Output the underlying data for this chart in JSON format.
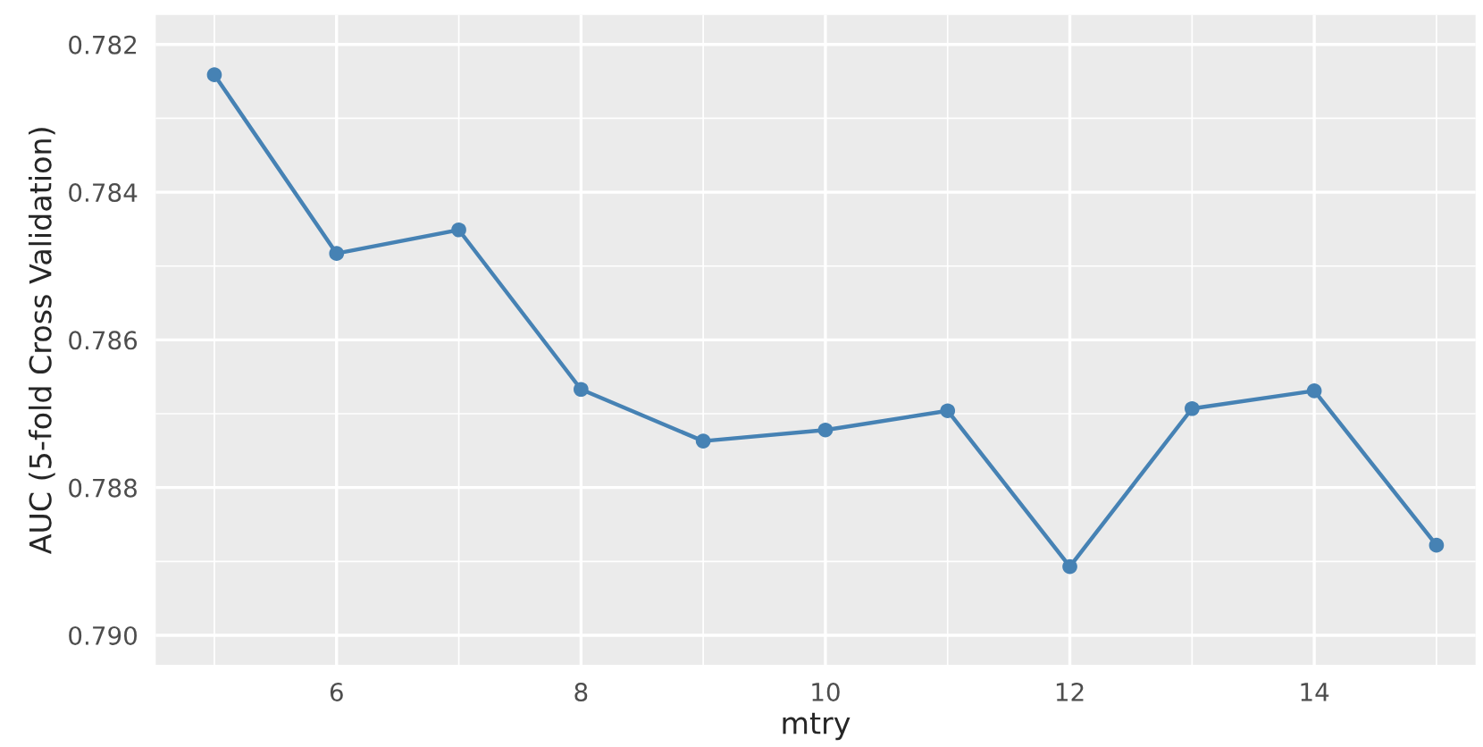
{
  "chart_data": {
    "type": "line",
    "xlabel": "mtry",
    "ylabel": "AUC (5-fold Cross Validation)",
    "x": [
      5,
      6,
      7,
      8,
      9,
      10,
      11,
      12,
      13,
      14,
      15
    ],
    "series": [
      {
        "color": "#4682b4",
        "values": [
          0.78241,
          0.78483,
          0.78451,
          0.78667,
          0.78737,
          0.78722,
          0.78696,
          0.78907,
          0.78693,
          0.78669,
          0.78878
        ]
      }
    ],
    "xlim": [
      4.52,
      15.32
    ],
    "ylim": [
      0.7904,
      0.7816
    ],
    "xticks": [
      6,
      8,
      10,
      12,
      14
    ],
    "yticks": [
      {
        "value": 0.782,
        "label": "0.782"
      },
      {
        "value": 0.784,
        "label": "0.784"
      },
      {
        "value": 0.786,
        "label": "0.786"
      },
      {
        "value": 0.788,
        "label": "0.788"
      },
      {
        "value": 0.79,
        "label": "0.790"
      }
    ],
    "grid": true,
    "marker": "circle",
    "line_style": "solid"
  }
}
